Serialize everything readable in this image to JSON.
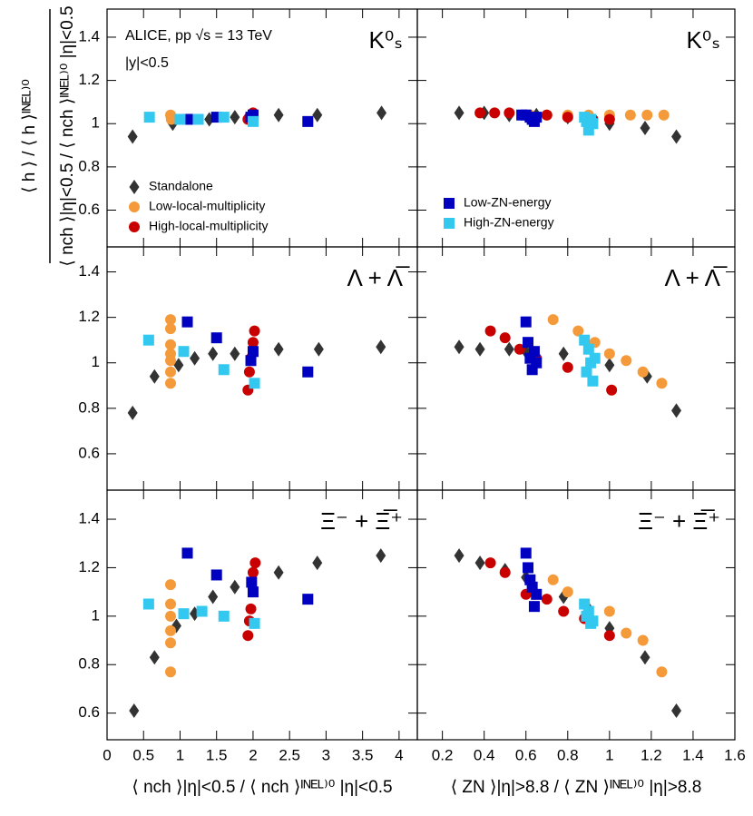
{
  "chart_data": [
    {
      "type": "scatter",
      "label": "K⁰ₛ",
      "annotations": [
        "ALICE, pp √s = 13 TeV",
        "|y|<0.5"
      ],
      "ylabel": {
        "numerator": "⟨ h ⟩ / ⟨ h ⟩ᴵᴺᴱᴸ⁾⁰",
        "denominator": "⟨ nch ⟩|η|<0.5 / ⟨ nch ⟩ᴵᴺᴱᴸ⁾⁰ |η|<0.5"
      },
      "xlim": [
        0,
        4.25
      ],
      "ylim": [
        0.43,
        1.53
      ],
      "xticks": [
        0,
        0.5,
        1,
        1.5,
        2,
        2.5,
        3,
        3.5,
        4
      ],
      "yticks": [
        0.6,
        0.8,
        1,
        1.2,
        1.4
      ],
      "series": [
        {
          "name": "Standalone",
          "color": "#333333",
          "marker": "diamond",
          "x": [
            0.35,
            0.9,
            1.4,
            1.75,
            2.35,
            2.88,
            3.76
          ],
          "values": [
            0.94,
            1.0,
            1.02,
            1.03,
            1.04,
            1.04,
            1.05
          ]
        },
        {
          "name": "Low-local-multiplicity",
          "color": "#f59a3a",
          "marker": "circle",
          "x": [
            0.87,
            0.88,
            0.88
          ],
          "values": [
            1.04,
            1.03,
            1.02
          ]
        },
        {
          "name": "High-local-multiplicity",
          "color": "#c80000",
          "marker": "circle",
          "x": [
            1.93,
            1.95,
            2.0
          ],
          "values": [
            1.02,
            1.03,
            1.05
          ]
        },
        {
          "color": "#0000c0",
          "marker": "square",
          "x": [
            1.1,
            1.5,
            1.97,
            2.0,
            2.75
          ],
          "values": [
            1.02,
            1.03,
            1.03,
            1.04,
            1.01
          ]
        },
        {
          "color": "#33c8f0",
          "marker": "square",
          "x": [
            0.58,
            1.0,
            1.25,
            1.6,
            2.0
          ],
          "values": [
            1.03,
            1.02,
            1.02,
            1.03,
            1.01
          ]
        }
      ]
    },
    {
      "type": "scatter",
      "label": "K⁰ₛ",
      "xlim": [
        0.08,
        1.6
      ],
      "ylim": [
        0.43,
        1.53
      ],
      "xticks": [
        0.2,
        0.4,
        0.6,
        0.8,
        1,
        1.2,
        1.4,
        1.6
      ],
      "yticks": [
        0.6,
        0.8,
        1,
        1.2,
        1.4
      ],
      "series": [
        {
          "color": "#333333",
          "marker": "diamond",
          "x": [
            0.28,
            0.4,
            0.52,
            0.65,
            0.8,
            1.0,
            1.17,
            1.32
          ],
          "values": [
            1.05,
            1.05,
            1.04,
            1.04,
            1.03,
            1.0,
            0.98,
            0.94
          ]
        },
        {
          "color": "#f59a3a",
          "marker": "circle",
          "x": [
            0.62,
            0.7,
            0.8,
            0.9,
            1.0,
            1.1,
            1.18,
            1.26
          ],
          "values": [
            1.04,
            1.04,
            1.04,
            1.04,
            1.04,
            1.04,
            1.04,
            1.04
          ]
        },
        {
          "color": "#c80000",
          "marker": "circle",
          "x": [
            0.38,
            0.45,
            0.52,
            0.6,
            0.7,
            0.8,
            0.92,
            1.0
          ],
          "values": [
            1.05,
            1.05,
            1.05,
            1.04,
            1.04,
            1.03,
            1.02,
            1.02
          ]
        },
        {
          "name": "Low-ZN-energy",
          "color": "#0000c0",
          "marker": "square",
          "x": [
            0.58,
            0.6,
            0.62,
            0.63,
            0.64,
            0.65
          ],
          "values": [
            1.04,
            1.04,
            1.03,
            1.02,
            1.01,
            1.03
          ]
        },
        {
          "name": "High-ZN-energy",
          "color": "#33c8f0",
          "marker": "square",
          "x": [
            0.88,
            0.89,
            0.9,
            0.91,
            0.92
          ],
          "values": [
            1.03,
            1.01,
            0.97,
            1.02,
            1.0
          ]
        }
      ]
    },
    {
      "type": "scatter",
      "label": "Λ + Λ̅",
      "xlim": [
        0,
        4.25
      ],
      "ylim": [
        0.44,
        1.51
      ],
      "xticks": [
        0,
        0.5,
        1,
        1.5,
        2,
        2.5,
        3,
        3.5,
        4
      ],
      "yticks": [
        0.6,
        0.8,
        1,
        1.2,
        1.4
      ],
      "series": [
        {
          "color": "#333333",
          "marker": "diamond",
          "x": [
            0.35,
            0.65,
            0.98,
            1.2,
            1.45,
            1.75,
            2.35,
            2.9,
            3.75
          ],
          "values": [
            0.78,
            0.94,
            0.99,
            1.02,
            1.04,
            1.04,
            1.06,
            1.06,
            1.07
          ]
        },
        {
          "color": "#f59a3a",
          "marker": "circle",
          "x": [
            0.87,
            0.87,
            0.87,
            0.87,
            0.87,
            0.87,
            0.87
          ],
          "values": [
            0.91,
            0.96,
            1.01,
            1.04,
            1.08,
            1.15,
            1.19
          ]
        },
        {
          "color": "#c80000",
          "marker": "circle",
          "x": [
            1.93,
            1.95,
            1.97,
            2.0,
            2.02
          ],
          "values": [
            0.88,
            0.96,
            1.02,
            1.09,
            1.14
          ]
        },
        {
          "color": "#0000c0",
          "marker": "square",
          "x": [
            1.1,
            1.5,
            1.97,
            2.0,
            2.75
          ],
          "values": [
            1.18,
            1.11,
            1.01,
            1.05,
            0.96
          ]
        },
        {
          "color": "#33c8f0",
          "marker": "square",
          "x": [
            0.57,
            1.05,
            1.6,
            2.02
          ],
          "values": [
            1.1,
            1.05,
            0.97,
            0.91
          ]
        }
      ]
    },
    {
      "type": "scatter",
      "label": "Λ + Λ̅",
      "xlim": [
        0.08,
        1.6
      ],
      "ylim": [
        0.44,
        1.51
      ],
      "xticks": [
        0.2,
        0.4,
        0.6,
        0.8,
        1,
        1.2,
        1.4,
        1.6
      ],
      "yticks": [
        0.6,
        0.8,
        1,
        1.2,
        1.4
      ],
      "series": [
        {
          "color": "#333333",
          "marker": "diamond",
          "x": [
            0.28,
            0.38,
            0.52,
            0.6,
            0.78,
            1.0,
            1.18,
            1.32
          ],
          "values": [
            1.07,
            1.06,
            1.06,
            1.05,
            1.04,
            0.99,
            0.94,
            0.79
          ]
        },
        {
          "color": "#f59a3a",
          "marker": "circle",
          "x": [
            0.73,
            0.85,
            0.93,
            1.0,
            1.08,
            1.16,
            1.25
          ],
          "values": [
            1.19,
            1.14,
            1.09,
            1.04,
            1.01,
            0.96,
            0.91
          ]
        },
        {
          "color": "#c80000",
          "marker": "circle",
          "x": [
            0.43,
            0.5,
            0.57,
            0.65,
            0.8,
            1.01
          ],
          "values": [
            1.14,
            1.11,
            1.06,
            1.02,
            0.98,
            0.88
          ]
        },
        {
          "color": "#0000c0",
          "marker": "square",
          "x": [
            0.6,
            0.61,
            0.62,
            0.63,
            0.64,
            0.65
          ],
          "values": [
            1.18,
            1.09,
            1.02,
            0.97,
            1.05,
            1.0
          ]
        },
        {
          "color": "#33c8f0",
          "marker": "square",
          "x": [
            0.88,
            0.9,
            0.89,
            0.91,
            0.92,
            0.93
          ],
          "values": [
            1.1,
            1.06,
            0.96,
            1.0,
            0.92,
            1.02
          ]
        }
      ]
    },
    {
      "type": "scatter",
      "label": "Ξ⁻ + Ξ̅⁺",
      "xlabel": "⟨ nch ⟩|η|<0.5 / ⟨ nch ⟩ᴵᴺᴱᴸ⁾⁰ |η|<0.5",
      "xlim": [
        0,
        4.25
      ],
      "ylim": [
        0.49,
        1.52
      ],
      "xticks": [
        0,
        0.5,
        1,
        1.5,
        2,
        2.5,
        3,
        3.5,
        4
      ],
      "yticks": [
        0.6,
        0.8,
        1,
        1.2,
        1.4
      ],
      "series": [
        {
          "color": "#333333",
          "marker": "diamond",
          "x": [
            0.37,
            0.65,
            0.95,
            1.2,
            1.45,
            1.75,
            2.35,
            2.88,
            3.75
          ],
          "values": [
            0.61,
            0.83,
            0.96,
            1.01,
            1.08,
            1.12,
            1.18,
            1.22,
            1.25
          ]
        },
        {
          "color": "#f59a3a",
          "marker": "circle",
          "x": [
            0.87,
            0.87,
            0.87,
            0.87,
            0.87,
            0.87
          ],
          "values": [
            0.77,
            0.89,
            0.94,
            1.0,
            1.05,
            1.13
          ]
        },
        {
          "color": "#c80000",
          "marker": "circle",
          "x": [
            1.93,
            1.95,
            1.97,
            2.0,
            2.03
          ],
          "values": [
            0.92,
            0.98,
            1.03,
            1.18,
            1.22
          ]
        },
        {
          "color": "#0000c0",
          "marker": "square",
          "x": [
            1.1,
            1.5,
            1.98,
            2.0,
            2.75
          ],
          "values": [
            1.26,
            1.17,
            1.14,
            1.1,
            1.07
          ]
        },
        {
          "color": "#33c8f0",
          "marker": "square",
          "x": [
            0.57,
            1.05,
            1.3,
            1.6,
            2.02
          ],
          "values": [
            1.05,
            1.01,
            1.02,
            1.0,
            0.97
          ]
        }
      ]
    },
    {
      "type": "scatter",
      "label": "Ξ⁻ + Ξ̅⁺",
      "xlabel": "⟨ ZN ⟩|η|>8.8 / ⟨ ZN ⟩ᴵᴺᴱᴸ⁾⁰ |η|>8.8",
      "xlim": [
        0.08,
        1.6
      ],
      "ylim": [
        0.49,
        1.52
      ],
      "xticks": [
        0.2,
        0.4,
        0.6,
        0.8,
        1,
        1.2,
        1.4,
        1.6
      ],
      "yticks": [
        0.6,
        0.8,
        1,
        1.2,
        1.4
      ],
      "series": [
        {
          "color": "#333333",
          "marker": "diamond",
          "x": [
            0.28,
            0.38,
            0.5,
            0.6,
            0.78,
            0.9,
            1.0,
            1.17,
            1.32
          ],
          "values": [
            1.25,
            1.22,
            1.19,
            1.16,
            1.08,
            1.03,
            0.95,
            0.83,
            0.61
          ]
        },
        {
          "color": "#f59a3a",
          "marker": "circle",
          "x": [
            0.73,
            0.8,
            0.88,
            1.0,
            1.08,
            1.16,
            1.25
          ],
          "values": [
            1.15,
            1.1,
            1.05,
            1.02,
            0.93,
            0.9,
            0.77
          ]
        },
        {
          "color": "#c80000",
          "marker": "circle",
          "x": [
            0.43,
            0.5,
            0.6,
            0.7,
            0.78,
            0.88,
            1.0
          ],
          "values": [
            1.22,
            1.18,
            1.09,
            1.07,
            1.02,
            0.99,
            0.92
          ]
        },
        {
          "color": "#0000c0",
          "marker": "square",
          "x": [
            0.6,
            0.61,
            0.62,
            0.63,
            0.64,
            0.65
          ],
          "values": [
            1.26,
            1.2,
            1.15,
            1.12,
            1.04,
            1.09
          ]
        },
        {
          "color": "#33c8f0",
          "marker": "square",
          "x": [
            0.88,
            0.9,
            0.92,
            0.89,
            0.91
          ],
          "values": [
            1.05,
            1.02,
            0.98,
            1.0,
            0.97
          ]
        }
      ]
    }
  ]
}
